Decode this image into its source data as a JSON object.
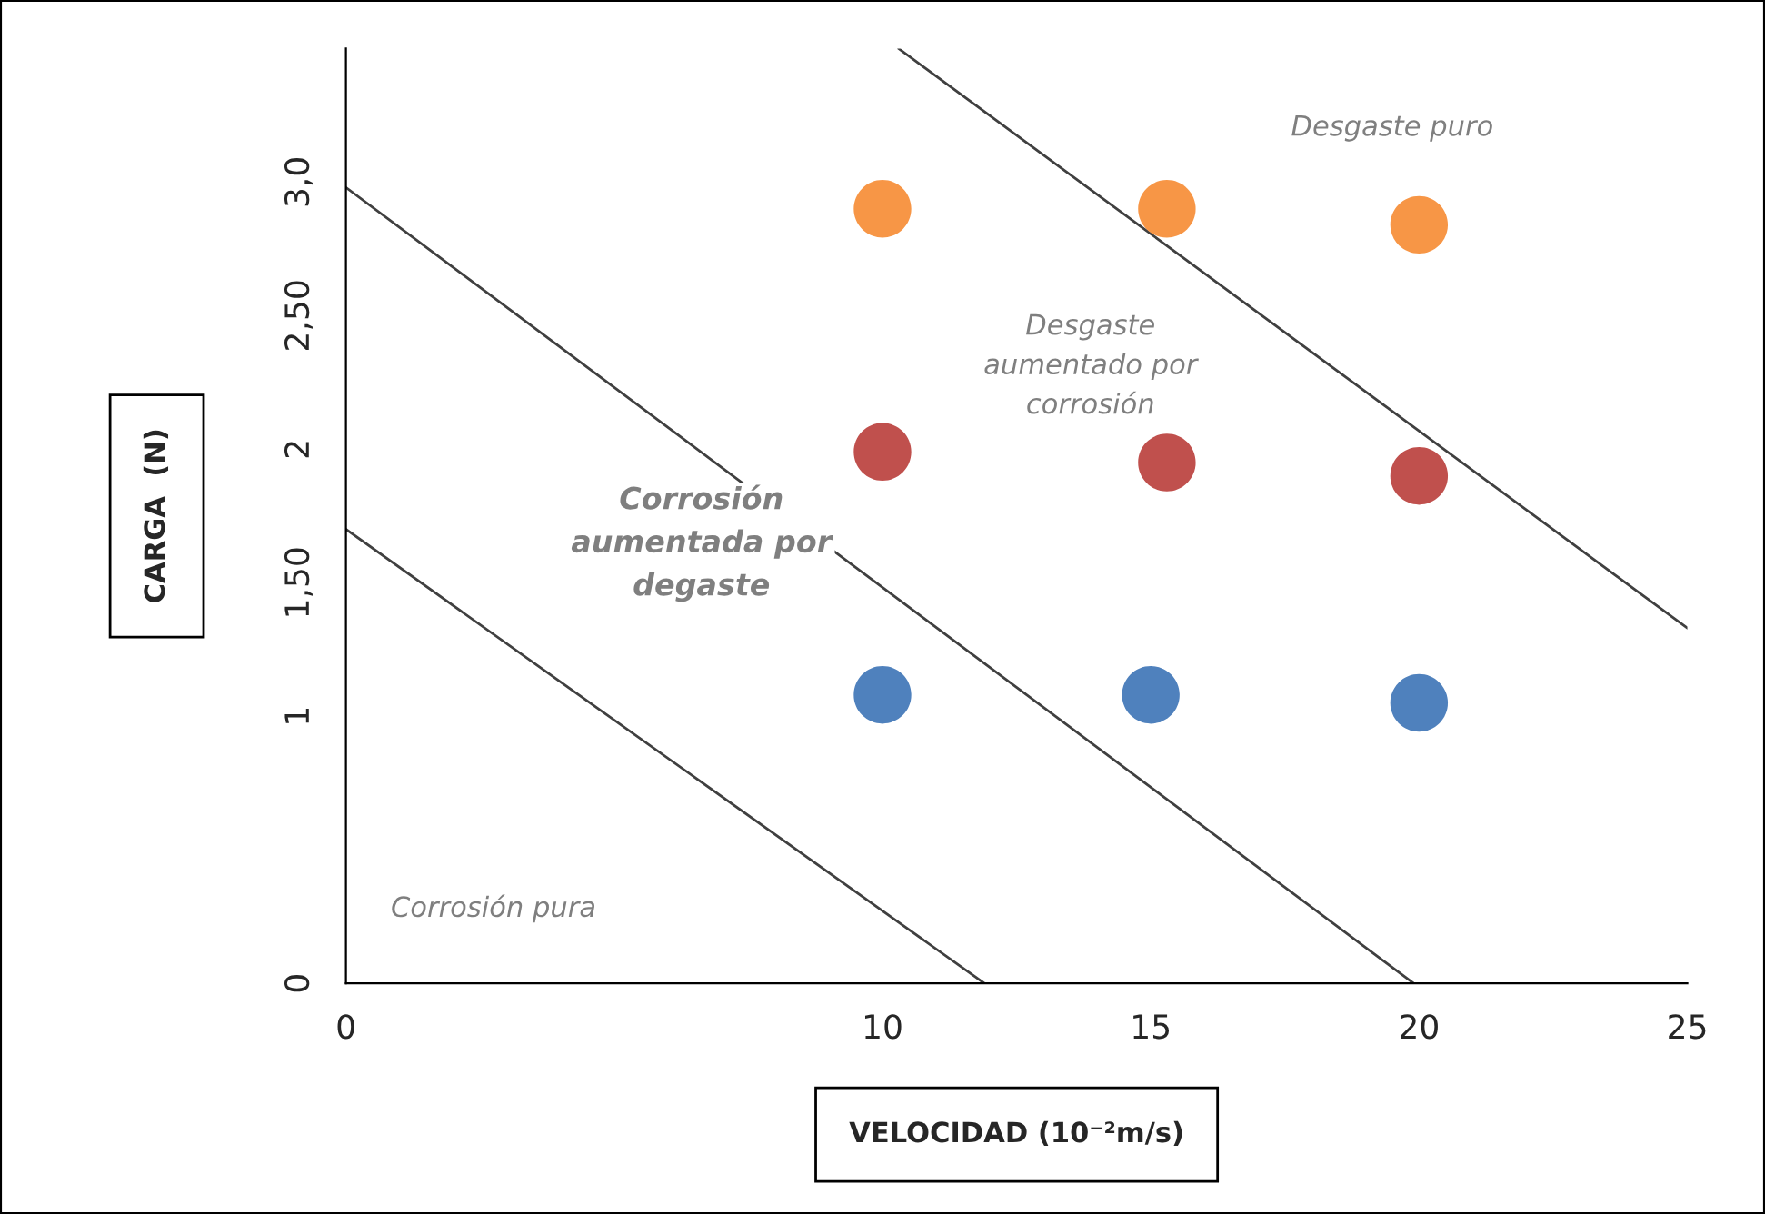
{
  "chart_data": {
    "type": "scatter",
    "xlabel": "VELOCIDAD (10⁻²m/s)",
    "ylabel": "CARGA  (N)",
    "xlim": [
      0,
      25
    ],
    "xticks": [
      0,
      10,
      15,
      20,
      25
    ],
    "ylim": [
      0,
      3.5
    ],
    "yticks": [
      0,
      1,
      {
        "value": 1.5,
        "label": "1,50"
      },
      2,
      {
        "value": 2.5,
        "label": "2,50"
      },
      {
        "value": 3,
        "label": "3,0"
      }
    ],
    "grid": false,
    "legend": false,
    "marker": "circle",
    "series": [
      {
        "color": "#f79646",
        "x": [
          10,
          15.3,
          20
        ],
        "values": [
          2.9,
          2.9,
          2.84
        ]
      },
      {
        "color": "#c0504d",
        "x": [
          10,
          15.3,
          20
        ],
        "values": [
          1.99,
          1.95,
          1.9
        ]
      },
      {
        "color": "#4f81bd",
        "x": [
          10,
          15,
          20
        ],
        "values": [
          1.08,
          1.08,
          1.05
        ]
      },
      {
        "type": "line",
        "color": "#404040",
        "marker": "none",
        "x": [
          0,
          11.9
        ],
        "values": [
          1.7,
          0
        ]
      },
      {
        "type": "line",
        "color": "#404040",
        "marker": "none",
        "x": [
          0,
          19.9
        ],
        "values": [
          2.98,
          0
        ]
      },
      {
        "type": "line",
        "color": "#404040",
        "marker": "none",
        "x": [
          10.3,
          25
        ],
        "values": [
          3.5,
          1.33
        ]
      }
    ],
    "annotations": [
      "Desgaste puro",
      "Desgaste\naumentado por\ncorrosión",
      "Corrosión\naumentada por\ndegaste",
      "Corrosión pura"
    ]
  }
}
